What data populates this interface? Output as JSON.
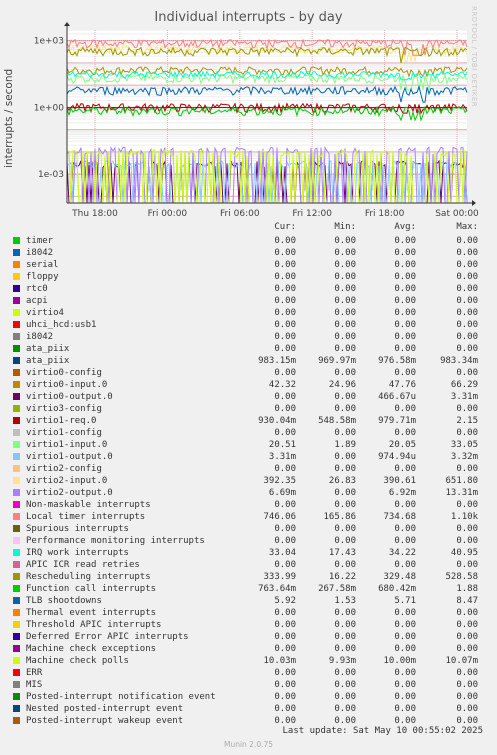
{
  "chart_data": {
    "type": "line",
    "title": "Individual interrupts - by day",
    "ylabel": "interrupts / second",
    "yscale": "log",
    "ylim": [
      5e-05,
      3000
    ],
    "yticks": [
      {
        "v": 1000,
        "label": "1e+03"
      },
      {
        "v": 1,
        "label": "1e+00"
      },
      {
        "v": 0.001,
        "label": "1e-03"
      }
    ],
    "xticks": [
      "Thu 18:00",
      "Fri 00:00",
      "Fri 06:00",
      "Fri 12:00",
      "Fri 18:00",
      "Sat 00:00"
    ],
    "grid": true,
    "legend_placement": "bottom",
    "columns": [
      "Cur:",
      "Min:",
      "Avg:",
      "Max:"
    ],
    "series": [
      {
        "name": "timer",
        "color": "#00cc00",
        "values": [
          "0.00",
          "0.00",
          "0.00",
          "0.00"
        ]
      },
      {
        "name": "i8042",
        "color": "#0066b3",
        "values": [
          "0.00",
          "0.00",
          "0.00",
          "0.00"
        ]
      },
      {
        "name": "serial",
        "color": "#ff8000",
        "values": [
          "0.00",
          "0.00",
          "0.00",
          "0.00"
        ]
      },
      {
        "name": "floppy",
        "color": "#ffcc00",
        "values": [
          "0.00",
          "0.00",
          "0.00",
          "0.00"
        ]
      },
      {
        "name": "rtc0",
        "color": "#330099",
        "values": [
          "0.00",
          "0.00",
          "0.00",
          "0.00"
        ]
      },
      {
        "name": "acpi",
        "color": "#990099",
        "values": [
          "0.00",
          "0.00",
          "0.00",
          "0.00"
        ]
      },
      {
        "name": "virtio4",
        "color": "#ccff00",
        "values": [
          "0.00",
          "0.00",
          "0.00",
          "0.00"
        ]
      },
      {
        "name": "uhci_hcd:usb1",
        "color": "#ff0000",
        "values": [
          "0.00",
          "0.00",
          "0.00",
          "0.00"
        ]
      },
      {
        "name": "i8042",
        "color": "#808080",
        "values": [
          "0.00",
          "0.00",
          "0.00",
          "0.00"
        ]
      },
      {
        "name": "ata_piix",
        "color": "#008f00",
        "values": [
          "0.00",
          "0.00",
          "0.00",
          "0.00"
        ]
      },
      {
        "name": "ata_piix",
        "color": "#00487d",
        "values": [
          "983.15m",
          "969.97m",
          "976.58m",
          "983.34m"
        ]
      },
      {
        "name": "virtio0-config",
        "color": "#b35a00",
        "values": [
          "0.00",
          "0.00",
          "0.00",
          "0.00"
        ]
      },
      {
        "name": "virtio0-input.0",
        "color": "#b38f00",
        "values": [
          "42.32",
          "24.96",
          "47.76",
          "66.29"
        ]
      },
      {
        "name": "virtio0-output.0",
        "color": "#6b006b",
        "values": [
          "0.00",
          "0.00",
          "466.67u",
          "3.31m"
        ]
      },
      {
        "name": "virtio3-config",
        "color": "#8fb300",
        "values": [
          "0.00",
          "0.00",
          "0.00",
          "0.00"
        ]
      },
      {
        "name": "virtio1-req.0",
        "color": "#b30000",
        "values": [
          "930.04m",
          "548.58m",
          "979.71m",
          "2.15"
        ]
      },
      {
        "name": "virtio1-config",
        "color": "#bebebe",
        "values": [
          "0.00",
          "0.00",
          "0.00",
          "0.00"
        ]
      },
      {
        "name": "virtio1-input.0",
        "color": "#80ff80",
        "values": [
          "20.51",
          "1.89",
          "20.05",
          "33.05"
        ]
      },
      {
        "name": "virtio1-output.0",
        "color": "#80c9ff",
        "values": [
          "3.31m",
          "0.00",
          "974.94u",
          "3.32m"
        ]
      },
      {
        "name": "virtio2-config",
        "color": "#ffc080",
        "values": [
          "0.00",
          "0.00",
          "0.00",
          "0.00"
        ]
      },
      {
        "name": "virtio2-input.0",
        "color": "#ffe680",
        "values": [
          "392.35",
          "26.83",
          "390.61",
          "651.80"
        ]
      },
      {
        "name": "virtio2-output.0",
        "color": "#aa80ff",
        "values": [
          "6.69m",
          "0.00",
          "6.92m",
          "13.31m"
        ]
      },
      {
        "name": "Non-maskable interrupts",
        "color": "#ee00cc",
        "values": [
          "0.00",
          "0.00",
          "0.00",
          "0.00"
        ]
      },
      {
        "name": "Local timer interrupts",
        "color": "#ff8080",
        "values": [
          "746.06",
          "165.86",
          "734.68",
          "1.10k"
        ]
      },
      {
        "name": "Spurious interrupts",
        "color": "#666600",
        "values": [
          "0.00",
          "0.00",
          "0.00",
          "0.00"
        ]
      },
      {
        "name": "Performance monitoring interrupts",
        "color": "#ffbfff",
        "values": [
          "0.00",
          "0.00",
          "0.00",
          "0.00"
        ]
      },
      {
        "name": "IRQ work interrupts",
        "color": "#00ffcc",
        "values": [
          "33.04",
          "17.43",
          "34.22",
          "40.95"
        ]
      },
      {
        "name": "APIC ICR read retries",
        "color": "#cc6699",
        "values": [
          "0.00",
          "0.00",
          "0.00",
          "0.00"
        ]
      },
      {
        "name": "Rescheduling interrupts",
        "color": "#999900",
        "values": [
          "333.99",
          "16.22",
          "329.48",
          "528.58"
        ]
      },
      {
        "name": "Function call interrupts",
        "color": "#00cc00",
        "values": [
          "763.64m",
          "267.58m",
          "680.42m",
          "1.88"
        ]
      },
      {
        "name": "TLB shootdowns",
        "color": "#0066b3",
        "values": [
          "5.92",
          "1.53",
          "5.71",
          "8.47"
        ]
      },
      {
        "name": "Thermal event interrupts",
        "color": "#ff8000",
        "values": [
          "0.00",
          "0.00",
          "0.00",
          "0.00"
        ]
      },
      {
        "name": "Threshold APIC interrupts",
        "color": "#ffcc00",
        "values": [
          "0.00",
          "0.00",
          "0.00",
          "0.00"
        ]
      },
      {
        "name": "Deferred Error APIC interrupts",
        "color": "#330099",
        "values": [
          "0.00",
          "0.00",
          "0.00",
          "0.00"
        ]
      },
      {
        "name": "Machine check exceptions",
        "color": "#990099",
        "values": [
          "0.00",
          "0.00",
          "0.00",
          "0.00"
        ]
      },
      {
        "name": "Machine check polls",
        "color": "#ccff00",
        "values": [
          "10.03m",
          "9.93m",
          "10.00m",
          "10.07m"
        ]
      },
      {
        "name": "ERR",
        "color": "#ff0000",
        "values": [
          "0.00",
          "0.00",
          "0.00",
          "0.00"
        ]
      },
      {
        "name": "MIS",
        "color": "#808080",
        "values": [
          "0.00",
          "0.00",
          "0.00",
          "0.00"
        ]
      },
      {
        "name": "Posted-interrupt notification event",
        "color": "#008f00",
        "values": [
          "0.00",
          "0.00",
          "0.00",
          "0.00"
        ]
      },
      {
        "name": "Nested posted-interrupt event",
        "color": "#00487d",
        "values": [
          "0.00",
          "0.00",
          "0.00",
          "0.00"
        ]
      },
      {
        "name": "Posted-interrupt wakeup event",
        "color": "#b35a00",
        "values": [
          "0.00",
          "0.00",
          "0.00",
          "0.00"
        ]
      }
    ]
  },
  "last_update": "Last update: Sat May 10 00:55:02 2025",
  "watermark": "RRDTOOL / TOBI OETIKER",
  "footer": "Munin 2.0.75"
}
